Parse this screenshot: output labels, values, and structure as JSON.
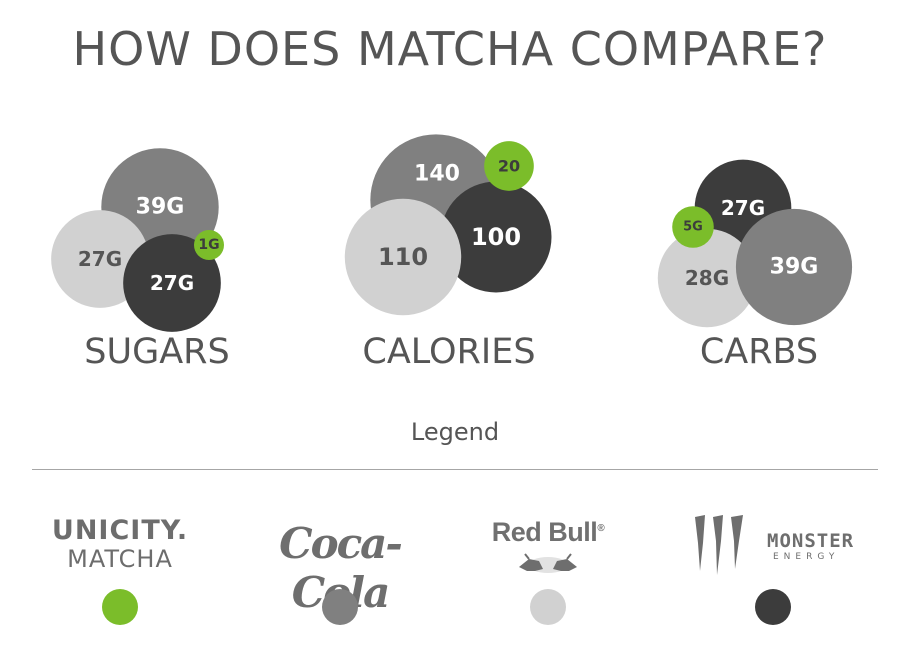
{
  "title": "HOW DOES MATCHA COMPARE?",
  "legend_title": "Legend",
  "colors": {
    "unicity_matcha": "#7bbd2a",
    "coca_cola": "#808080",
    "red_bull": "#d1d1d1",
    "monster_energy": "#3c3c3c"
  },
  "chart_data": {
    "type": "bubble",
    "title": "HOW DOES MATCHA COMPARE?",
    "groups": [
      {
        "label": "SUGARS",
        "unit": "G",
        "values": [
          {
            "brand": "Unicity Matcha",
            "value": 1,
            "label": "1G",
            "color": "#7bbd2a"
          },
          {
            "brand": "Coca-Cola",
            "value": 39,
            "label": "39G",
            "color": "#808080"
          },
          {
            "brand": "Red Bull",
            "value": 27,
            "label": "27G",
            "color": "#d1d1d1"
          },
          {
            "brand": "Monster Energy",
            "value": 27,
            "label": "27G",
            "color": "#3c3c3c"
          }
        ]
      },
      {
        "label": "CALORIES",
        "unit": "",
        "values": [
          {
            "brand": "Unicity Matcha",
            "value": 20,
            "label": "20",
            "color": "#7bbd2a"
          },
          {
            "brand": "Coca-Cola",
            "value": 140,
            "label": "140",
            "color": "#808080"
          },
          {
            "brand": "Red Bull",
            "value": 110,
            "label": "110",
            "color": "#d1d1d1"
          },
          {
            "brand": "Monster Energy",
            "value": 100,
            "label": "100",
            "color": "#3c3c3c"
          }
        ]
      },
      {
        "label": "CARBS",
        "unit": "G",
        "values": [
          {
            "brand": "Unicity Matcha",
            "value": 5,
            "label": "5G",
            "color": "#7bbd2a"
          },
          {
            "brand": "Coca-Cola",
            "value": 39,
            "label": "39G",
            "color": "#808080"
          },
          {
            "brand": "Red Bull",
            "value": 28,
            "label": "28G",
            "color": "#d1d1d1"
          },
          {
            "brand": "Monster Energy",
            "value": 27,
            "label": "27G",
            "color": "#3c3c3c"
          }
        ]
      }
    ],
    "legend": [
      {
        "brand": "Unicity Matcha",
        "logo_line1": "UNICITY.",
        "logo_line2": "MATCHA",
        "color": "#7bbd2a"
      },
      {
        "brand": "Coca-Cola",
        "logo_text": "Coca-Cola",
        "color": "#808080"
      },
      {
        "brand": "Red Bull",
        "logo_text": "Red Bull",
        "color": "#d1d1d1"
      },
      {
        "brand": "Monster Energy",
        "logo_text": "MONSTER",
        "logo_sub": "ENERGY",
        "color": "#3c3c3c"
      }
    ]
  }
}
